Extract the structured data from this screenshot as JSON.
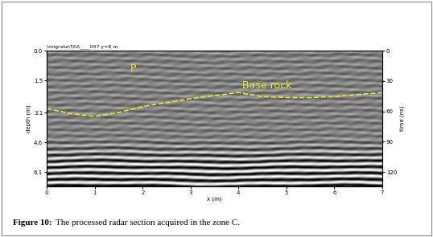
{
  "chart_data": {
    "type": "radargram",
    "header": "\\migrate\\TAA____047 y=8 m",
    "xlabel": "x (m)",
    "ylabel": "depth (m)",
    "y2label": "time (ns)",
    "xlim": [
      0,
      7
    ],
    "xticks": [
      0,
      1,
      2,
      3,
      4,
      5,
      6,
      7
    ],
    "ylim": [
      6.8,
      0
    ],
    "yticks": [
      {
        "value": 0,
        "label": "0.0"
      },
      1.5,
      3.1,
      4.6,
      6.1
    ],
    "y2lim": [
      134,
      0
    ],
    "y2ticks": [
      0,
      30,
      60,
      90,
      120
    ],
    "tick_labels": true,
    "series": [
      {
        "x": [
          0,
          0.5,
          1.0,
          1.5,
          2.0,
          2.5,
          3.0,
          3.5,
          4.0,
          4.5,
          5.0,
          5.5,
          6.0,
          6.5,
          7.0
        ],
        "values": [
          2.9,
          3.15,
          3.3,
          3.1,
          2.8,
          2.6,
          2.4,
          2.25,
          2.1,
          2.3,
          2.35,
          2.35,
          2.3,
          2.2,
          2.1
        ],
        "color": "#e6e632",
        "line_style": "dashed"
      }
    ],
    "annotations": [
      {
        "text": "P",
        "x": 1.8,
        "y": 0.9,
        "color": "#e6e632"
      },
      {
        "text": "Base rock",
        "x": 4.6,
        "y": 1.75,
        "color": "#e6e632"
      }
    ],
    "caption_label": "Figure 10:",
    "caption": "The processed radar section acquired in the zone C."
  }
}
